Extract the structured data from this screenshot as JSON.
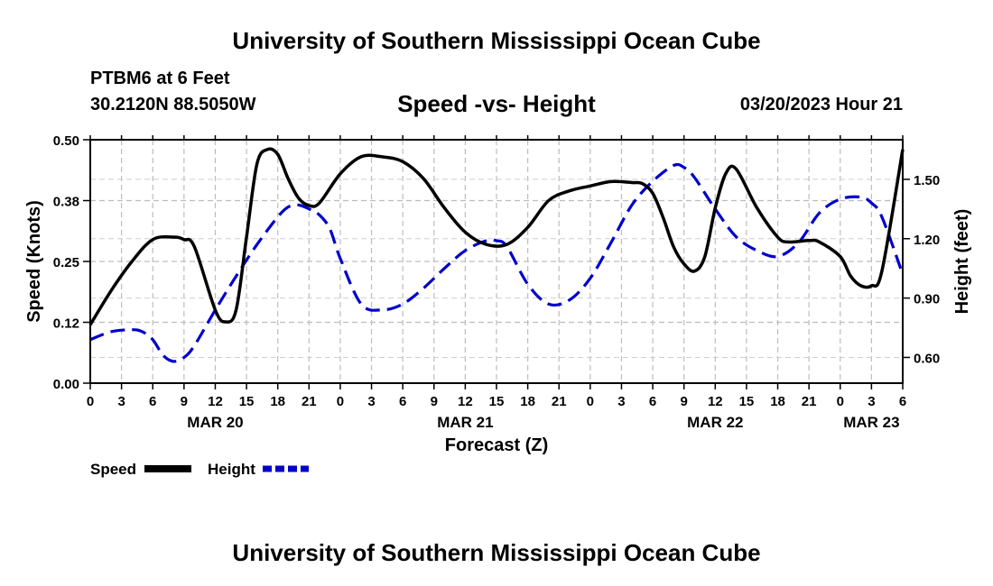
{
  "header": {
    "title": "University of Southern Mississippi Ocean Cube",
    "station": "PTBM6 at 6 Feet",
    "coordinates": "30.2120N  88.5050W",
    "subtitle": "Speed -vs- Height",
    "datetime": "03/20/2023 Hour 21"
  },
  "footer": {
    "title": "University of Southern Mississippi Ocean Cube"
  },
  "chart_data": {
    "type": "line",
    "title": "Speed -vs- Height",
    "xlabel": "Forecast (Z)",
    "ylabel": "Speed (Knots)",
    "y2label": "Height (feet)",
    "grid": true,
    "x_range_hours": [
      0,
      78
    ],
    "x_ticks": [
      {
        "h": 0,
        "label": "0"
      },
      {
        "h": 3,
        "label": "3"
      },
      {
        "h": 6,
        "label": "6"
      },
      {
        "h": 9,
        "label": "9"
      },
      {
        "h": 12,
        "label": "12"
      },
      {
        "h": 15,
        "label": "15"
      },
      {
        "h": 18,
        "label": "18"
      },
      {
        "h": 21,
        "label": "21"
      },
      {
        "h": 24,
        "label": "0"
      },
      {
        "h": 27,
        "label": "3"
      },
      {
        "h": 30,
        "label": "6"
      },
      {
        "h": 33,
        "label": "9"
      },
      {
        "h": 36,
        "label": "12"
      },
      {
        "h": 39,
        "label": "15"
      },
      {
        "h": 42,
        "label": "18"
      },
      {
        "h": 45,
        "label": "21"
      },
      {
        "h": 48,
        "label": "0"
      },
      {
        "h": 51,
        "label": "3"
      },
      {
        "h": 54,
        "label": "6"
      },
      {
        "h": 57,
        "label": "9"
      },
      {
        "h": 60,
        "label": "12"
      },
      {
        "h": 63,
        "label": "15"
      },
      {
        "h": 66,
        "label": "18"
      },
      {
        "h": 69,
        "label": "21"
      },
      {
        "h": 72,
        "label": "0"
      },
      {
        "h": 75,
        "label": "3"
      },
      {
        "h": 78,
        "label": "6"
      }
    ],
    "date_labels": [
      {
        "h": 12,
        "label": "MAR 20"
      },
      {
        "h": 36,
        "label": "MAR 21"
      },
      {
        "h": 60,
        "label": "MAR 22"
      },
      {
        "h": 75,
        "label": "MAR 23"
      }
    ],
    "y_left": {
      "min": 0,
      "max": 0.5,
      "ticks": [
        0,
        0.125,
        0.25,
        0.375,
        0.5
      ],
      "tick_labels": [
        "0.00",
        "0.12",
        "0.25",
        "0.38",
        "0.50"
      ]
    },
    "y_right": {
      "min": 0.47,
      "max": 1.7,
      "ticks": [
        0.6,
        0.9,
        1.2,
        1.5
      ],
      "tick_labels": [
        "0.60",
        "0.90",
        "1.20",
        "1.50"
      ]
    },
    "series": [
      {
        "name": "Speed",
        "axis": "left",
        "color": "#000000",
        "dash": "solid",
        "x": [
          0,
          2,
          4,
          6,
          8,
          9,
          10,
          12,
          13,
          14,
          15,
          16,
          17,
          18,
          19,
          20,
          21,
          22,
          24,
          26,
          28,
          30,
          32,
          34,
          36,
          38,
          40,
          42,
          44,
          46,
          48,
          50,
          52,
          53,
          54,
          55,
          56,
          57,
          58,
          59,
          60,
          61,
          62,
          64,
          66,
          67,
          69,
          70,
          72,
          73,
          74,
          75,
          76,
          78
        ],
        "values": [
          0.12,
          0.19,
          0.25,
          0.295,
          0.3,
          0.295,
          0.28,
          0.15,
          0.126,
          0.15,
          0.3,
          0.45,
          0.48,
          0.47,
          0.42,
          0.38,
          0.365,
          0.37,
          0.43,
          0.465,
          0.465,
          0.455,
          0.42,
          0.36,
          0.31,
          0.285,
          0.285,
          0.32,
          0.375,
          0.395,
          0.405,
          0.414,
          0.412,
          0.41,
          0.39,
          0.34,
          0.28,
          0.245,
          0.23,
          0.26,
          0.36,
          0.43,
          0.44,
          0.36,
          0.3,
          0.29,
          0.293,
          0.29,
          0.26,
          0.22,
          0.2,
          0.2,
          0.23,
          0.48
        ]
      },
      {
        "name": "Height",
        "axis": "right",
        "color": "#0000cc",
        "dash": "dashed",
        "x": [
          0,
          2,
          4,
          5,
          6,
          7,
          8,
          9,
          10,
          12,
          14,
          16,
          18,
          19,
          20,
          21,
          22,
          23,
          24,
          26,
          28,
          30,
          32,
          34,
          36,
          38,
          39,
          40,
          42,
          44,
          46,
          48,
          50,
          52,
          54,
          56,
          57,
          58,
          60,
          62,
          64,
          66,
          68,
          70,
          72,
          74,
          75,
          76,
          78
        ],
        "values": [
          0.69,
          0.73,
          0.74,
          0.73,
          0.69,
          0.61,
          0.58,
          0.6,
          0.66,
          0.84,
          1.01,
          1.17,
          1.31,
          1.36,
          1.37,
          1.35,
          1.32,
          1.25,
          1.1,
          0.87,
          0.84,
          0.87,
          0.95,
          1.05,
          1.14,
          1.19,
          1.19,
          1.16,
          0.97,
          0.87,
          0.89,
          1.0,
          1.18,
          1.37,
          1.49,
          1.57,
          1.56,
          1.51,
          1.35,
          1.21,
          1.14,
          1.11,
          1.18,
          1.33,
          1.4,
          1.41,
          1.38,
          1.31,
          1.02
        ]
      }
    ]
  },
  "legend": {
    "speed_label": "Speed",
    "height_label": "Height"
  }
}
